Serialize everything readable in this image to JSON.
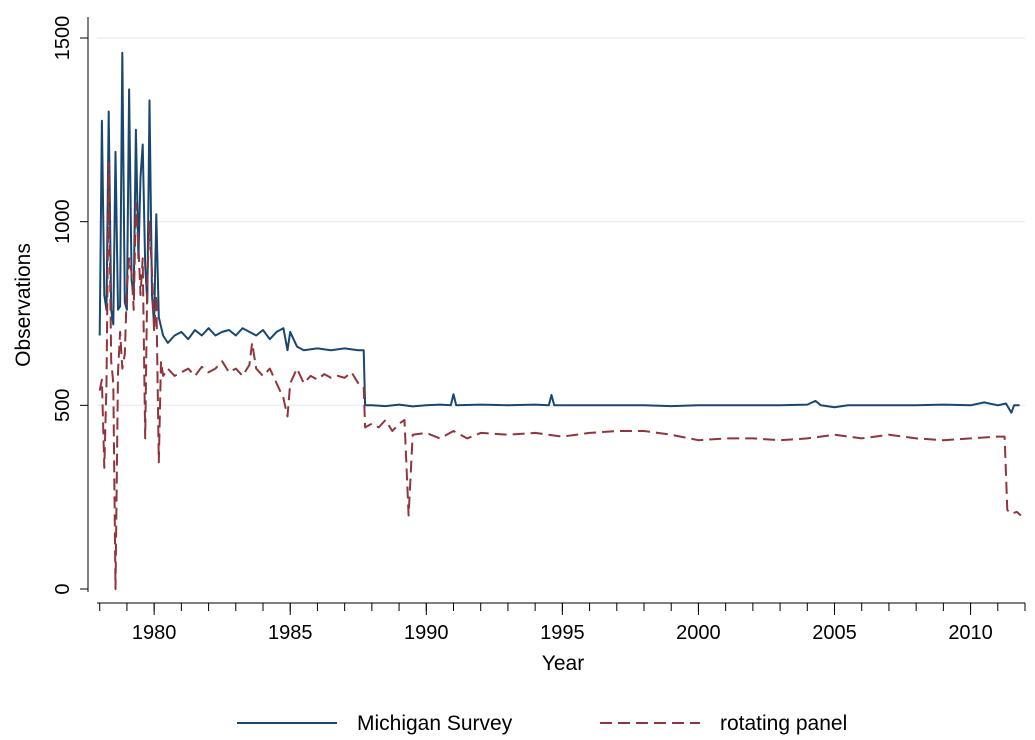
{
  "chart_data": {
    "type": "line",
    "title": "",
    "xlabel": "Year",
    "ylabel": "Observations",
    "xlim": [
      1977.9,
      2012.0
    ],
    "ylim": [
      0,
      1500
    ],
    "x_ticks": [
      1980,
      1985,
      1990,
      1995,
      2000,
      2005,
      2010
    ],
    "y_ticks": [
      0,
      500,
      1000,
      1500
    ],
    "x_minor_ticks": [
      1978,
      1979,
      1980,
      1981,
      1982,
      1983,
      1984,
      1985,
      1986,
      1987,
      1988,
      1989,
      1990,
      1991,
      1992,
      1993,
      1994,
      1995,
      1996,
      1997,
      1998,
      1999,
      2000,
      2001,
      2002,
      2003,
      2004,
      2005,
      2006,
      2007,
      2008,
      2009,
      2010,
      2011,
      2012
    ],
    "grid": "horizontal",
    "legend": "bottom",
    "series": [
      {
        "name": "Michigan Survey",
        "color": "#1a476f",
        "dash": "solid",
        "points": [
          [
            1978.0,
            690
          ],
          [
            1978.08,
            1275
          ],
          [
            1978.17,
            800
          ],
          [
            1978.25,
            760
          ],
          [
            1978.33,
            1300
          ],
          [
            1978.42,
            760
          ],
          [
            1978.5,
            720
          ],
          [
            1978.58,
            1190
          ],
          [
            1978.67,
            760
          ],
          [
            1978.75,
            770
          ],
          [
            1978.83,
            1460
          ],
          [
            1978.92,
            780
          ],
          [
            1979.0,
            760
          ],
          [
            1979.08,
            1360
          ],
          [
            1979.17,
            840
          ],
          [
            1979.25,
            800
          ],
          [
            1979.33,
            1250
          ],
          [
            1979.42,
            900
          ],
          [
            1979.5,
            1120
          ],
          [
            1979.58,
            1210
          ],
          [
            1979.67,
            880
          ],
          [
            1979.75,
            780
          ],
          [
            1979.83,
            1330
          ],
          [
            1979.92,
            800
          ],
          [
            1980.0,
            720
          ],
          [
            1980.08,
            1020
          ],
          [
            1980.17,
            740
          ],
          [
            1980.33,
            690
          ],
          [
            1980.5,
            670
          ],
          [
            1980.75,
            690
          ],
          [
            1981.0,
            700
          ],
          [
            1981.25,
            680
          ],
          [
            1981.5,
            705
          ],
          [
            1981.75,
            690
          ],
          [
            1982.0,
            710
          ],
          [
            1982.25,
            690
          ],
          [
            1982.5,
            700
          ],
          [
            1982.75,
            705
          ],
          [
            1983.0,
            690
          ],
          [
            1983.25,
            710
          ],
          [
            1983.5,
            700
          ],
          [
            1983.75,
            690
          ],
          [
            1984.0,
            705
          ],
          [
            1984.25,
            680
          ],
          [
            1984.5,
            700
          ],
          [
            1984.75,
            710
          ],
          [
            1984.9,
            650
          ],
          [
            1985.0,
            700
          ],
          [
            1985.25,
            660
          ],
          [
            1985.5,
            650
          ],
          [
            1986.0,
            655
          ],
          [
            1986.5,
            650
          ],
          [
            1987.0,
            655
          ],
          [
            1987.5,
            650
          ],
          [
            1987.7,
            650
          ],
          [
            1987.75,
            500
          ],
          [
            1988.0,
            500
          ],
          [
            1988.5,
            498
          ],
          [
            1989.0,
            502
          ],
          [
            1989.5,
            497
          ],
          [
            1990.0,
            500
          ],
          [
            1990.5,
            502
          ],
          [
            1990.9,
            500
          ],
          [
            1991.0,
            530
          ],
          [
            1991.1,
            500
          ],
          [
            1992.0,
            502
          ],
          [
            1993.0,
            500
          ],
          [
            1994.0,
            502
          ],
          [
            1994.5,
            500
          ],
          [
            1994.6,
            528
          ],
          [
            1994.7,
            500
          ],
          [
            1995.0,
            500
          ],
          [
            1996.0,
            500
          ],
          [
            1997.0,
            500
          ],
          [
            1998.0,
            500
          ],
          [
            1999.0,
            498
          ],
          [
            2000.0,
            500
          ],
          [
            2001.0,
            500
          ],
          [
            2002.0,
            500
          ],
          [
            2003.0,
            500
          ],
          [
            2004.0,
            502
          ],
          [
            2004.3,
            512
          ],
          [
            2004.5,
            500
          ],
          [
            2005.0,
            495
          ],
          [
            2005.5,
            500
          ],
          [
            2006.0,
            500
          ],
          [
            2007.0,
            500
          ],
          [
            2008.0,
            500
          ],
          [
            2009.0,
            502
          ],
          [
            2010.0,
            500
          ],
          [
            2010.5,
            508
          ],
          [
            2011.0,
            500
          ],
          [
            2011.3,
            505
          ],
          [
            2011.5,
            480
          ],
          [
            2011.6,
            500
          ],
          [
            2011.8,
            500
          ]
        ]
      },
      {
        "name": "rotating panel",
        "color": "#90353b",
        "dash": "dashed",
        "points": [
          [
            1978.0,
            540
          ],
          [
            1978.08,
            570
          ],
          [
            1978.17,
            330
          ],
          [
            1978.25,
            560
          ],
          [
            1978.33,
            1160
          ],
          [
            1978.42,
            620
          ],
          [
            1978.5,
            560
          ],
          [
            1978.58,
            0
          ],
          [
            1978.67,
            590
          ],
          [
            1978.75,
            700
          ],
          [
            1978.83,
            600
          ],
          [
            1978.92,
            640
          ],
          [
            1979.0,
            820
          ],
          [
            1979.08,
            900
          ],
          [
            1979.17,
            860
          ],
          [
            1979.25,
            760
          ],
          [
            1979.33,
            1050
          ],
          [
            1979.42,
            940
          ],
          [
            1979.5,
            800
          ],
          [
            1979.58,
            900
          ],
          [
            1979.67,
            410
          ],
          [
            1979.75,
            840
          ],
          [
            1979.83,
            1000
          ],
          [
            1979.92,
            860
          ],
          [
            1980.0,
            700
          ],
          [
            1980.08,
            800
          ],
          [
            1980.17,
            345
          ],
          [
            1980.25,
            620
          ],
          [
            1980.33,
            580
          ],
          [
            1980.5,
            600
          ],
          [
            1980.75,
            580
          ],
          [
            1981.0,
            590
          ],
          [
            1981.25,
            600
          ],
          [
            1981.5,
            580
          ],
          [
            1981.75,
            605
          ],
          [
            1982.0,
            590
          ],
          [
            1982.25,
            600
          ],
          [
            1982.5,
            620
          ],
          [
            1982.75,
            590
          ],
          [
            1983.0,
            600
          ],
          [
            1983.25,
            580
          ],
          [
            1983.5,
            610
          ],
          [
            1983.6,
            670
          ],
          [
            1983.75,
            600
          ],
          [
            1984.0,
            580
          ],
          [
            1984.25,
            600
          ],
          [
            1984.5,
            560
          ],
          [
            1984.75,
            520
          ],
          [
            1984.9,
            470
          ],
          [
            1985.0,
            560
          ],
          [
            1985.25,
            600
          ],
          [
            1985.5,
            560
          ],
          [
            1985.75,
            580
          ],
          [
            1986.0,
            570
          ],
          [
            1986.25,
            585
          ],
          [
            1986.5,
            575
          ],
          [
            1986.75,
            580
          ],
          [
            1987.0,
            575
          ],
          [
            1987.25,
            590
          ],
          [
            1987.5,
            560
          ],
          [
            1987.7,
            550
          ],
          [
            1987.75,
            440
          ],
          [
            1988.0,
            450
          ],
          [
            1988.25,
            440
          ],
          [
            1988.5,
            460
          ],
          [
            1988.75,
            430
          ],
          [
            1989.0,
            450
          ],
          [
            1989.2,
            460
          ],
          [
            1989.35,
            200
          ],
          [
            1989.5,
            420
          ],
          [
            1990.0,
            425
          ],
          [
            1990.5,
            410
          ],
          [
            1991.0,
            430
          ],
          [
            1991.5,
            410
          ],
          [
            1992.0,
            425
          ],
          [
            1993.0,
            420
          ],
          [
            1994.0,
            425
          ],
          [
            1995.0,
            415
          ],
          [
            1996.0,
            425
          ],
          [
            1997.0,
            430
          ],
          [
            1998.0,
            430
          ],
          [
            1999.0,
            420
          ],
          [
            2000.0,
            405
          ],
          [
            2001.0,
            410
          ],
          [
            2002.0,
            410
          ],
          [
            2003.0,
            405
          ],
          [
            2004.0,
            410
          ],
          [
            2005.0,
            420
          ],
          [
            2006.0,
            410
          ],
          [
            2007.0,
            420
          ],
          [
            2008.0,
            410
          ],
          [
            2009.0,
            405
          ],
          [
            2010.0,
            410
          ],
          [
            2011.0,
            415
          ],
          [
            2011.25,
            415
          ],
          [
            2011.35,
            215
          ],
          [
            2011.5,
            205
          ],
          [
            2011.7,
            210
          ],
          [
            2011.85,
            200
          ]
        ]
      }
    ]
  }
}
